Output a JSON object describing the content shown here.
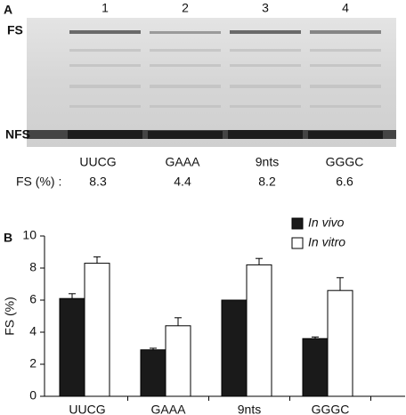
{
  "panel_a": {
    "label": "A",
    "lanes": [
      "1",
      "2",
      "3",
      "4"
    ],
    "band_labels": [
      "FS",
      "NFS"
    ],
    "constructs": [
      "UUCG",
      "GAAA",
      "9nts",
      "GGGC"
    ],
    "fs_label": "FS (%) :",
    "fs_values": [
      "8.3",
      "4.4",
      "8.2",
      "6.6"
    ]
  },
  "chart_data": {
    "type": "bar",
    "panel_label": "B",
    "ylabel": "FS (%)",
    "categories": [
      "UUCG",
      "GAAA",
      "9nts",
      "GGGC"
    ],
    "series": [
      {
        "name": "In vivo",
        "color": "#1a1a1a",
        "values": [
          6.1,
          2.9,
          6.0,
          3.6
        ],
        "errors": [
          0.3,
          0.1,
          0,
          0.1
        ]
      },
      {
        "name": "In vitro",
        "color": "#ffffff",
        "values": [
          8.3,
          4.4,
          8.2,
          6.6
        ],
        "errors": [
          0.4,
          0.5,
          0.4,
          0.8
        ]
      }
    ],
    "ylim": [
      0,
      10
    ],
    "yticks": [
      0,
      2,
      4,
      6,
      8,
      10
    ],
    "legend": "upper right"
  }
}
